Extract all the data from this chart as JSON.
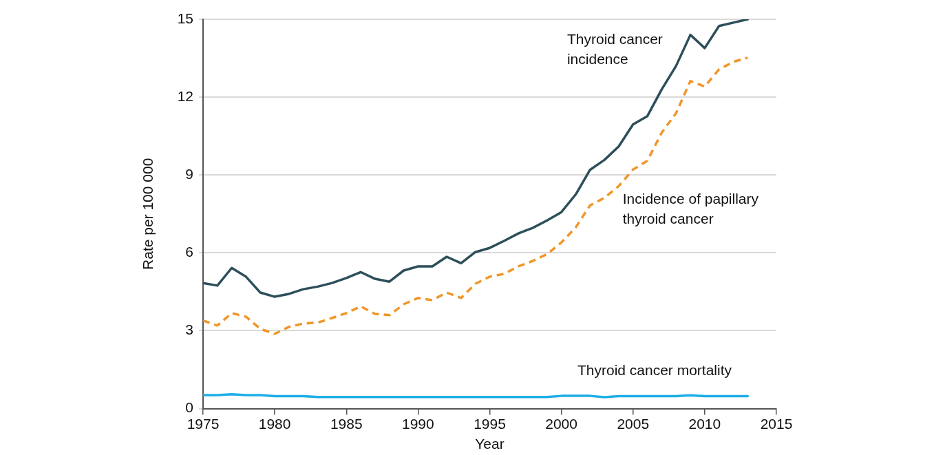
{
  "chart_data": {
    "type": "line",
    "xlabel": "Year",
    "ylabel": "Rate per 100 000",
    "x": [
      1975,
      1976,
      1977,
      1978,
      1979,
      1980,
      1981,
      1982,
      1983,
      1984,
      1985,
      1986,
      1987,
      1988,
      1989,
      1990,
      1991,
      1992,
      1993,
      1994,
      1995,
      1996,
      1997,
      1998,
      1999,
      2000,
      2001,
      2002,
      2003,
      2004,
      2005,
      2006,
      2007,
      2008,
      2009,
      2010,
      2011,
      2012,
      2013
    ],
    "series": [
      {
        "name": "Thyroid cancer incidence",
        "color": "#2d4f5a",
        "line_style": "solid",
        "values": [
          4.84,
          4.74,
          5.42,
          5.08,
          4.47,
          4.31,
          4.42,
          4.6,
          4.7,
          4.84,
          5.03,
          5.26,
          5.0,
          4.89,
          5.32,
          5.48,
          5.48,
          5.85,
          5.6,
          6.03,
          6.19,
          6.46,
          6.75,
          6.96,
          7.25,
          7.57,
          8.25,
          9.2,
          9.58,
          10.1,
          10.95,
          11.27,
          12.3,
          13.2,
          14.4,
          13.89,
          14.74,
          14.87,
          15.0
        ]
      },
      {
        "name": "Incidence of papillary thyroid cancer",
        "color": "#f0962a",
        "line_style": "dashed",
        "values": [
          3.39,
          3.2,
          3.68,
          3.54,
          3.07,
          2.88,
          3.15,
          3.28,
          3.31,
          3.49,
          3.68,
          3.94,
          3.65,
          3.6,
          4.02,
          4.26,
          4.18,
          4.47,
          4.26,
          4.81,
          5.08,
          5.19,
          5.48,
          5.69,
          5.95,
          6.4,
          6.98,
          7.83,
          8.12,
          8.57,
          9.21,
          9.55,
          10.63,
          11.38,
          12.62,
          12.41,
          13.07,
          13.36,
          13.52
        ]
      },
      {
        "name": "Thyroid cancer mortality",
        "color": "#1eaee6",
        "line_style": "solid",
        "values": [
          0.52,
          0.52,
          0.55,
          0.52,
          0.52,
          0.48,
          0.48,
          0.48,
          0.45,
          0.45,
          0.45,
          0.45,
          0.45,
          0.45,
          0.45,
          0.45,
          0.45,
          0.45,
          0.45,
          0.45,
          0.45,
          0.45,
          0.45,
          0.45,
          0.45,
          0.49,
          0.49,
          0.49,
          0.44,
          0.48,
          0.48,
          0.48,
          0.48,
          0.48,
          0.51,
          0.48,
          0.48,
          0.48,
          0.48
        ]
      }
    ],
    "xlim": [
      1975,
      2015
    ],
    "xticks": [
      1975,
      1980,
      1985,
      1990,
      1995,
      2000,
      2005,
      2010,
      2015
    ],
    "ylim": [
      0,
      15
    ],
    "yticks": [
      0,
      3,
      6,
      9,
      12,
      15
    ],
    "grid": "y",
    "legend": false,
    "marker": "none"
  }
}
